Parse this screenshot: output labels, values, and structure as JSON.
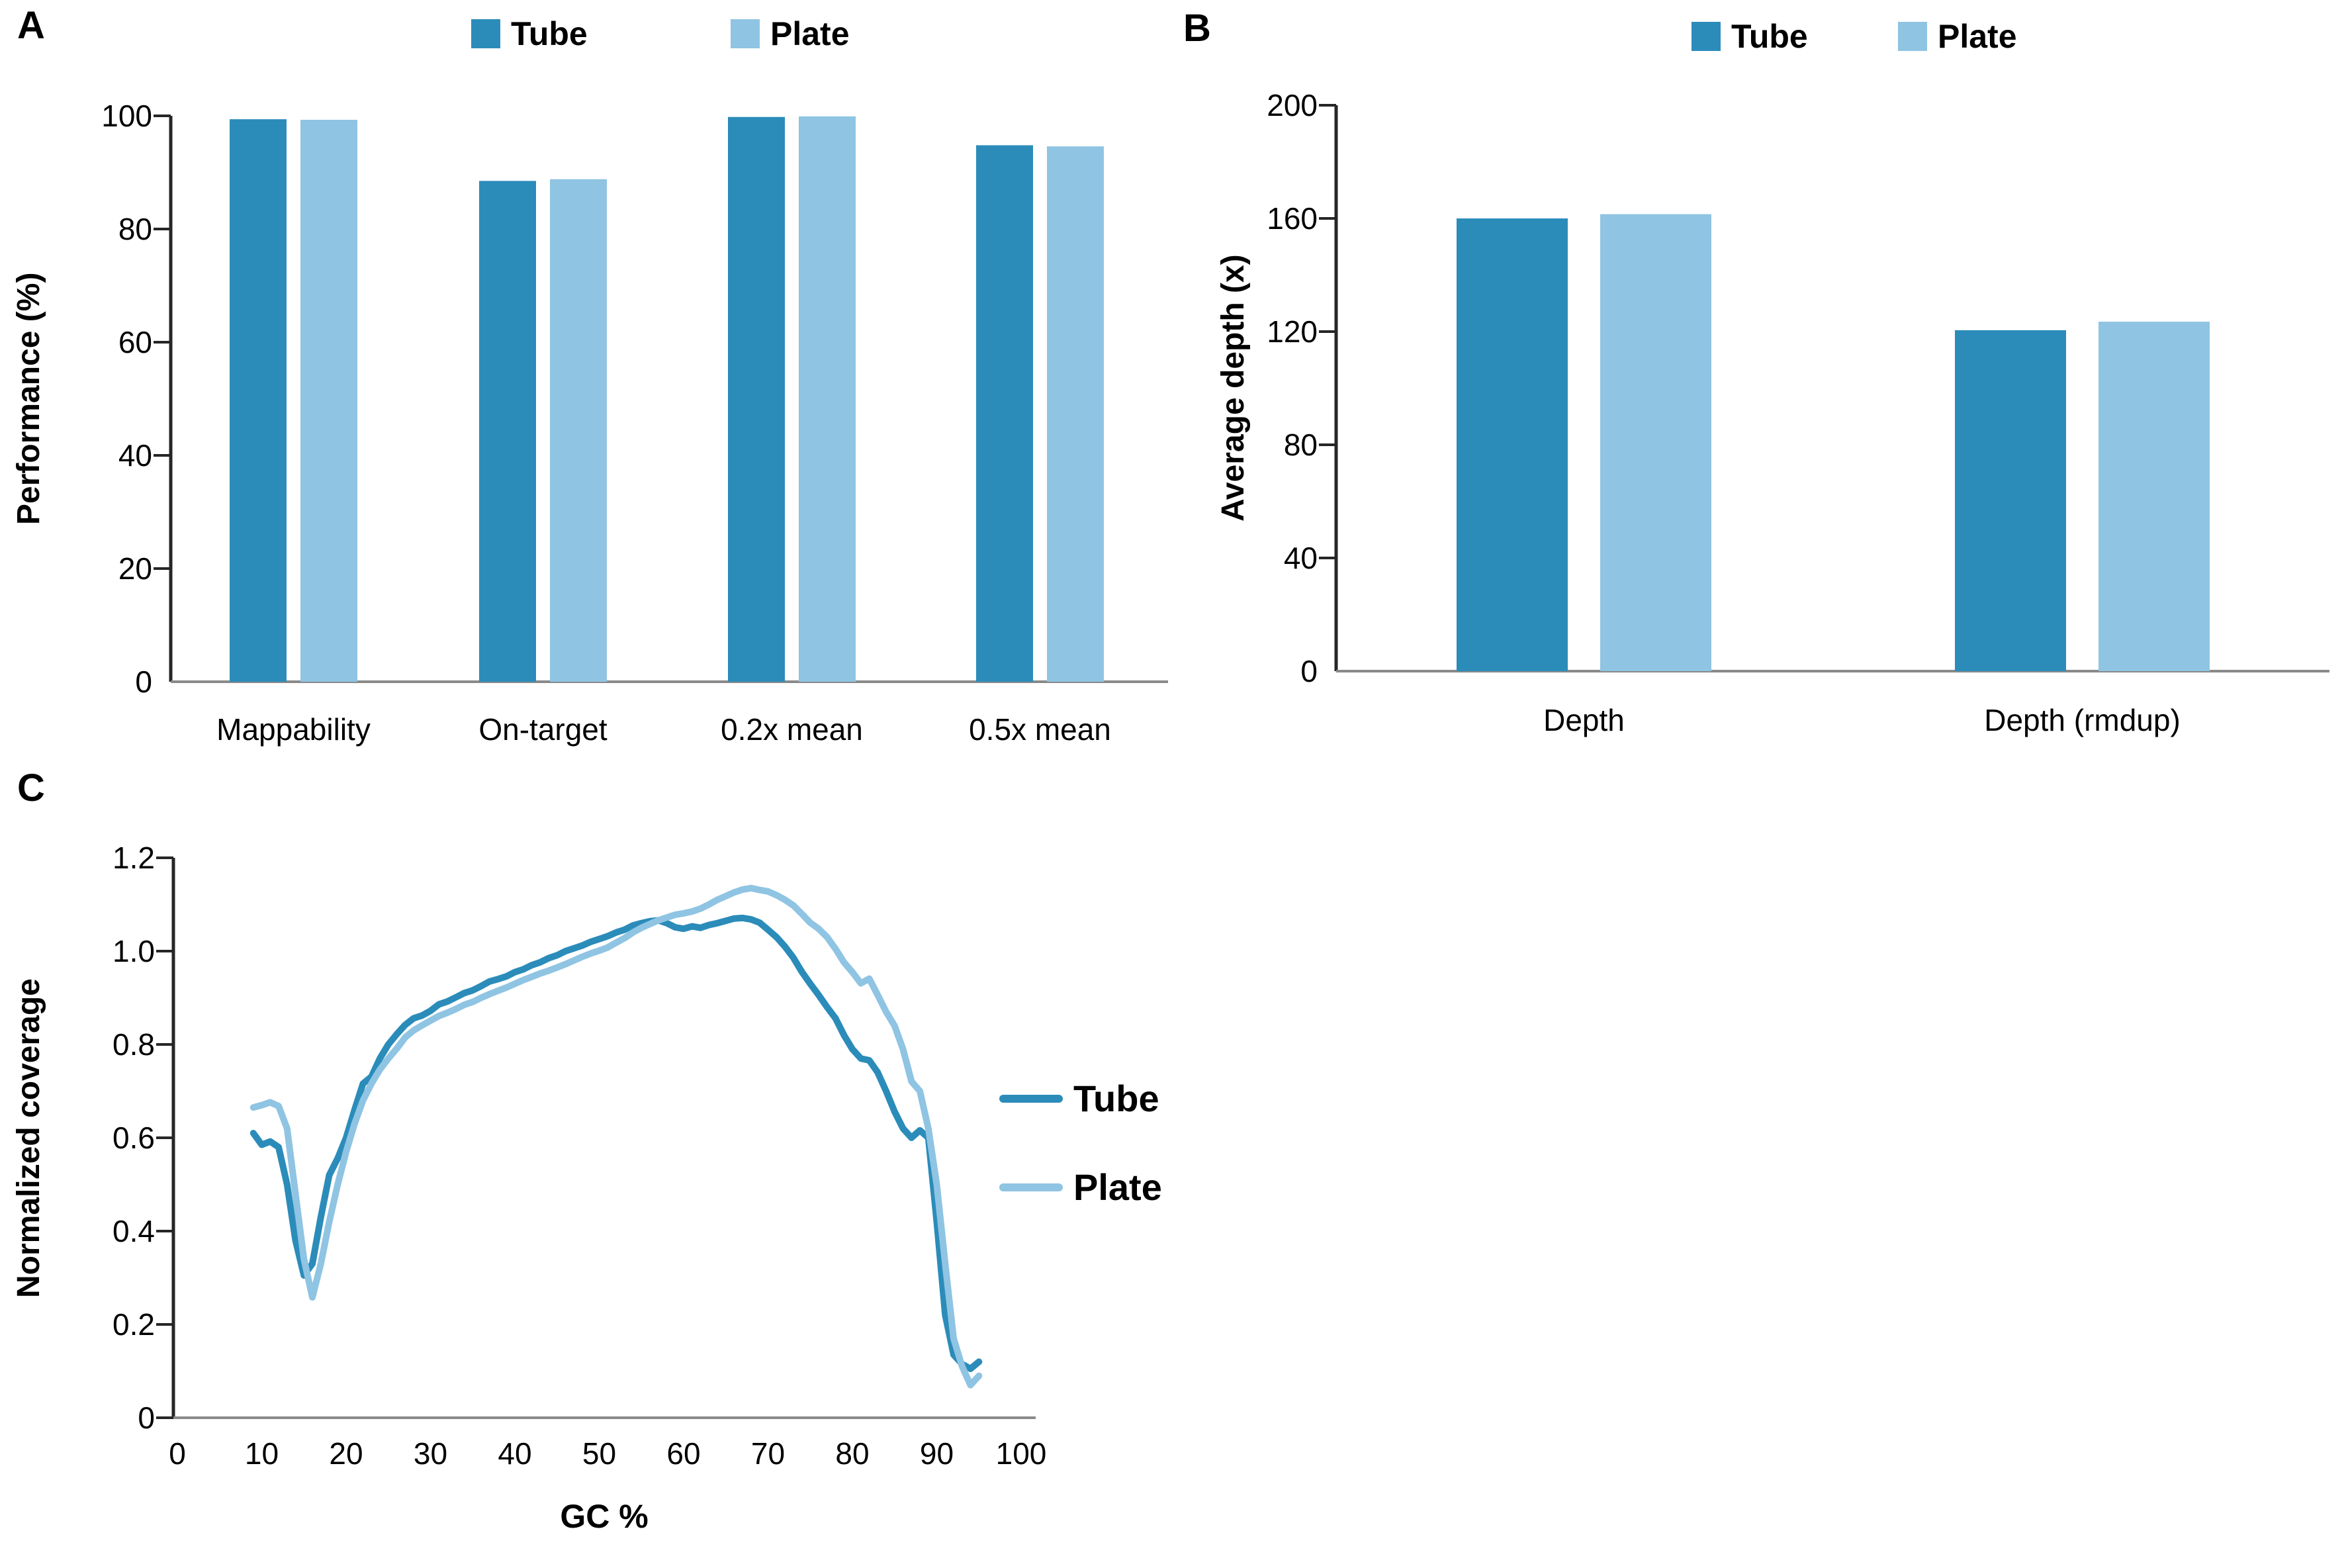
{
  "colors": {
    "tube": "#2b8cba",
    "plate": "#8fc4e3",
    "axis": "#262626",
    "baseline": "#8a8a8a",
    "text": "#000000",
    "background": "#ffffff"
  },
  "panels": {
    "a": {
      "label": "A",
      "y_title": "Performance (%)",
      "legend": {
        "tube": "Tube",
        "plate": "Plate"
      }
    },
    "b": {
      "label": "B",
      "y_title": "Average depth (x)",
      "legend": {
        "tube": "Tube",
        "plate": "Plate"
      }
    },
    "c": {
      "label": "C",
      "y_title": "Normalized coverage",
      "x_title": "GC %",
      "legend": {
        "tube": "Tube",
        "plate": "Plate"
      }
    }
  },
  "chart_data": [
    {
      "id": "A",
      "type": "bar",
      "title": "",
      "ylabel": "Performance (%)",
      "xlabel": "",
      "categories": [
        "Mappability",
        "On-target",
        "0.2x mean",
        "0.5x mean"
      ],
      "series": [
        {
          "name": "Tube",
          "values": [
            99.4,
            88.5,
            99.8,
            94.8
          ]
        },
        {
          "name": "Plate",
          "values": [
            99.3,
            88.8,
            99.9,
            94.6
          ]
        }
      ],
      "ylim": [
        0,
        100
      ],
      "yticks": [
        0,
        20,
        40,
        60,
        80,
        100
      ],
      "grid": false,
      "legend_position": "top"
    },
    {
      "id": "B",
      "type": "bar",
      "title": "",
      "ylabel": "Average depth (x)",
      "xlabel": "",
      "categories": [
        "Depth",
        "Depth (rmdup)"
      ],
      "series": [
        {
          "name": "Tube",
          "values": [
            160,
            120.5
          ]
        },
        {
          "name": "Plate",
          "values": [
            161.5,
            123.5
          ]
        }
      ],
      "ylim": [
        0,
        200
      ],
      "yticks": [
        0,
        40,
        80,
        120,
        160,
        200
      ],
      "grid": false,
      "legend_position": "top"
    },
    {
      "id": "C",
      "type": "line",
      "title": "",
      "xlabel": "GC %",
      "ylabel": "Normalized coverage",
      "xlim": [
        0,
        100
      ],
      "ylim": [
        0,
        1.2
      ],
      "xticks": [
        0,
        10,
        20,
        30,
        40,
        50,
        60,
        70,
        80,
        90,
        100
      ],
      "yticks": [
        0,
        0.2,
        0.4,
        0.6,
        0.8,
        1.0,
        1.2
      ],
      "grid": false,
      "legend_position": "right",
      "series": [
        {
          "name": "Tube",
          "x": [
            9,
            10,
            11,
            12,
            13,
            14,
            15,
            16,
            17,
            18,
            19,
            20,
            21,
            22,
            23,
            24,
            25,
            26,
            27,
            28,
            29,
            30,
            31,
            32,
            33,
            34,
            35,
            36,
            37,
            38,
            39,
            40,
            41,
            42,
            43,
            44,
            45,
            46,
            47,
            48,
            49,
            50,
            51,
            52,
            53,
            54,
            55,
            56,
            57,
            58,
            59,
            60,
            61,
            62,
            63,
            64,
            65,
            66,
            67,
            68,
            69,
            70,
            71,
            72,
            73,
            74,
            75,
            76,
            77,
            78,
            79,
            80,
            81,
            82,
            83,
            84,
            85,
            86,
            87,
            88,
            89,
            90,
            91,
            92,
            93,
            94,
            95
          ],
          "y": [
            0.61,
            0.585,
            0.592,
            0.58,
            0.5,
            0.38,
            0.305,
            0.33,
            0.43,
            0.52,
            0.556,
            0.6,
            0.66,
            0.716,
            0.731,
            0.77,
            0.8,
            0.822,
            0.842,
            0.856,
            0.862,
            0.872,
            0.886,
            0.892,
            0.901,
            0.91,
            0.916,
            0.925,
            0.935,
            0.94,
            0.946,
            0.955,
            0.961,
            0.97,
            0.976,
            0.985,
            0.991,
            1.0,
            1.006,
            1.012,
            1.02,
            1.026,
            1.032,
            1.04,
            1.046,
            1.055,
            1.06,
            1.064,
            1.066,
            1.06,
            1.051,
            1.048,
            1.053,
            1.05,
            1.056,
            1.06,
            1.065,
            1.07,
            1.071,
            1.068,
            1.061,
            1.046,
            1.03,
            1.01,
            0.986,
            0.956,
            0.93,
            0.906,
            0.88,
            0.856,
            0.82,
            0.79,
            0.77,
            0.766,
            0.74,
            0.7,
            0.656,
            0.62,
            0.6,
            0.616,
            0.6,
            0.42,
            0.22,
            0.135,
            0.115,
            0.105,
            0.12
          ]
        },
        {
          "name": "Plate",
          "x": [
            9,
            10,
            11,
            12,
            13,
            14,
            15,
            16,
            17,
            18,
            19,
            20,
            21,
            22,
            23,
            24,
            25,
            26,
            27,
            28,
            29,
            30,
            31,
            32,
            33,
            34,
            35,
            36,
            37,
            38,
            39,
            40,
            41,
            42,
            43,
            44,
            45,
            46,
            47,
            48,
            49,
            50,
            51,
            52,
            53,
            54,
            55,
            56,
            57,
            58,
            59,
            60,
            61,
            62,
            63,
            64,
            65,
            66,
            67,
            68,
            69,
            70,
            71,
            72,
            73,
            74,
            75,
            76,
            77,
            78,
            79,
            80,
            81,
            82,
            83,
            84,
            85,
            86,
            87,
            88,
            89,
            90,
            91,
            92,
            93,
            94,
            95
          ],
          "y": [
            0.665,
            0.67,
            0.676,
            0.668,
            0.62,
            0.48,
            0.34,
            0.258,
            0.33,
            0.42,
            0.5,
            0.57,
            0.63,
            0.68,
            0.716,
            0.746,
            0.77,
            0.791,
            0.815,
            0.83,
            0.841,
            0.851,
            0.861,
            0.868,
            0.876,
            0.885,
            0.891,
            0.9,
            0.908,
            0.915,
            0.922,
            0.93,
            0.938,
            0.945,
            0.952,
            0.958,
            0.965,
            0.972,
            0.98,
            0.988,
            0.995,
            1.001,
            1.008,
            1.018,
            1.028,
            1.04,
            1.05,
            1.058,
            1.066,
            1.072,
            1.078,
            1.081,
            1.085,
            1.091,
            1.1,
            1.11,
            1.118,
            1.126,
            1.132,
            1.135,
            1.131,
            1.128,
            1.12,
            1.11,
            1.098,
            1.08,
            1.061,
            1.048,
            1.03,
            1.005,
            0.976,
            0.955,
            0.931,
            0.941,
            0.906,
            0.87,
            0.84,
            0.79,
            0.721,
            0.7,
            0.62,
            0.5,
            0.33,
            0.17,
            0.11,
            0.07,
            0.09
          ]
        }
      ]
    }
  ]
}
